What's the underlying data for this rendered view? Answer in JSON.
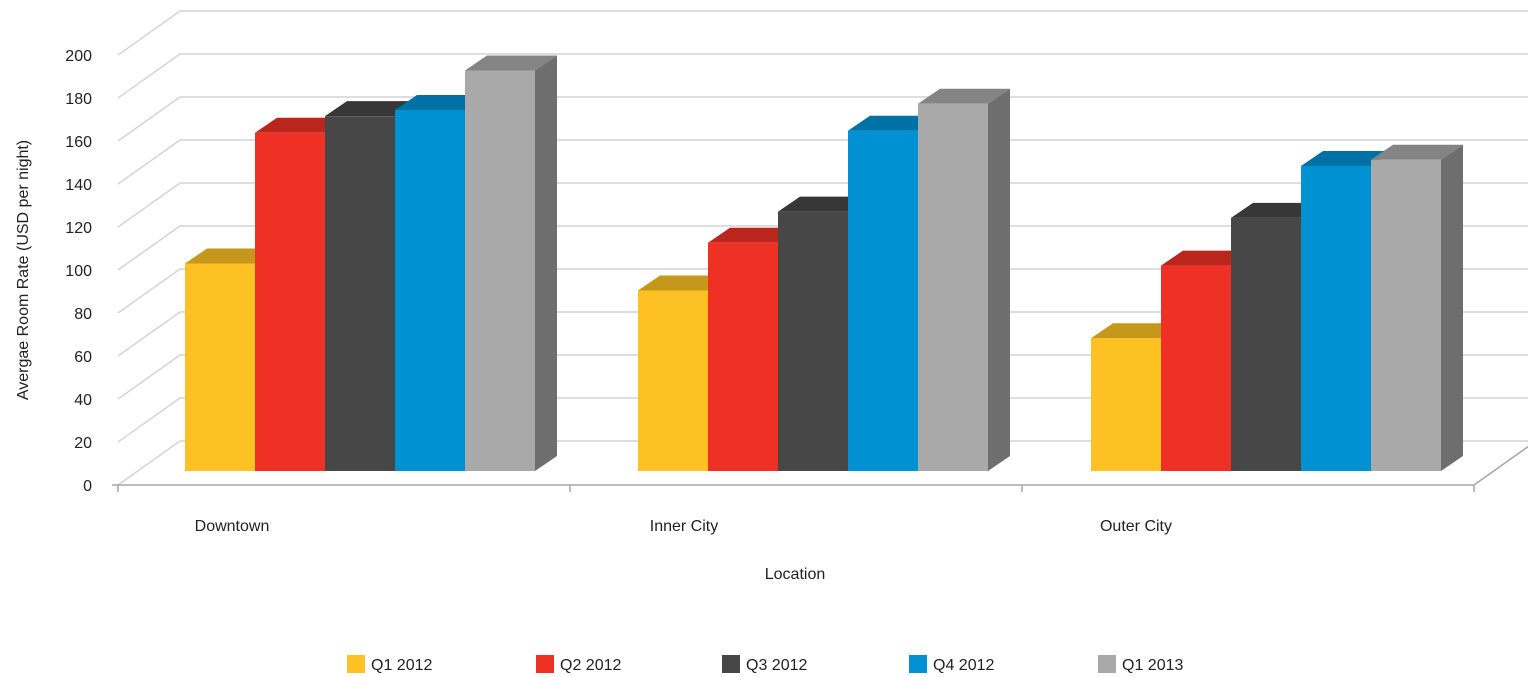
{
  "chart_data": {
    "type": "bar",
    "style": "3d-clustered-column",
    "categories": [
      "Downtown",
      "Inner City",
      "Outer City"
    ],
    "series": [
      {
        "name": "Q1 2012",
        "color": "#FDC123",
        "values": [
          100,
          87,
          64
        ]
      },
      {
        "name": "Q2 2012",
        "color": "#EE3124",
        "values": [
          163,
          110,
          99
        ]
      },
      {
        "name": "Q3 2012",
        "color": "#474747",
        "values": [
          171,
          125,
          122
        ]
      },
      {
        "name": "Q4 2012",
        "color": "#0091D2",
        "values": [
          174,
          164,
          147
        ]
      },
      {
        "name": "Q1 2013",
        "color": "#A9A9A9",
        "values": [
          193,
          177,
          150
        ]
      }
    ],
    "xlabel": "Location",
    "ylabel": "Avergae  Room Rate (USD per night)",
    "ylim": [
      0,
      200
    ],
    "yticks": [
      0,
      20,
      40,
      60,
      80,
      100,
      120,
      140,
      160,
      180,
      200
    ],
    "grid": true,
    "legend_position": "bottom"
  }
}
